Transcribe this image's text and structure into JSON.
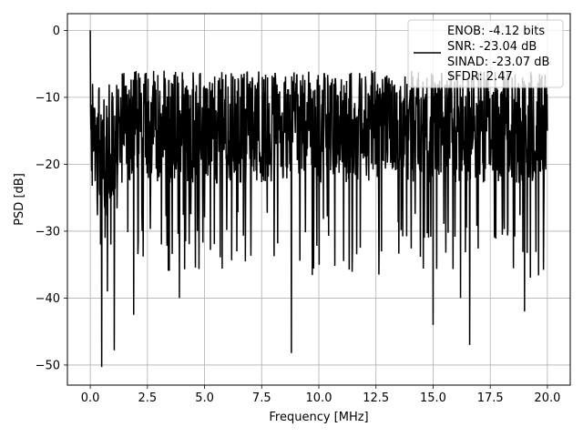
{
  "chart_data": {
    "type": "line",
    "title": "",
    "xlabel": "Frequency [MHz]",
    "ylabel": "PSD [dB]",
    "xlim": [
      -1.0,
      21.0
    ],
    "ylim": [
      -53.0,
      2.5
    ],
    "xticks": [
      0.0,
      2.5,
      5.0,
      7.5,
      10.0,
      12.5,
      15.0,
      17.5,
      20.0
    ],
    "xtick_labels": [
      "0.0",
      "2.5",
      "5.0",
      "7.5",
      "10.0",
      "12.5",
      "15.0",
      "17.5",
      "20.0"
    ],
    "yticks": [
      0,
      -10,
      -20,
      -30,
      -40,
      -50
    ],
    "ytick_labels": [
      "0",
      "−10",
      "−20",
      "−30",
      "−40",
      "−50"
    ],
    "grid": true,
    "legend_position": "top-right",
    "legend_lines": [
      "ENOB: -4.12 bits",
      "SNR: -23.04 dB",
      "SINAD: -23.07 dB",
      "SFDR: 2.47"
    ],
    "series": [
      {
        "color": "#000000",
        "style": "dense noise spectrum",
        "x_range": [
          0.0,
          20.0
        ],
        "envelope_upper_db": -6.0,
        "envelope_lower_db": -27.0,
        "x": [
          0.0,
          0.06,
          0.1,
          0.15,
          0.2,
          0.3,
          0.45,
          0.5,
          0.65,
          0.75,
          0.9,
          1.05,
          1.2,
          1.9,
          3.9,
          7.7,
          8.8,
          10.0,
          12.5,
          15.0,
          16.2,
          16.6,
          17.5,
          19.0,
          20.0
        ],
        "y": [
          0.0,
          -21.0,
          -8.0,
          -18.0,
          -12.0,
          -25.0,
          -32.0,
          -50.3,
          -31.0,
          -39.0,
          -32.0,
          -47.8,
          -20.0,
          -42.5,
          -40.0,
          -20.0,
          -48.2,
          -22.0,
          -20.0,
          -44.0,
          -40.0,
          -47.0,
          -20.0,
          -42.0,
          -15.0
        ]
      }
    ]
  }
}
